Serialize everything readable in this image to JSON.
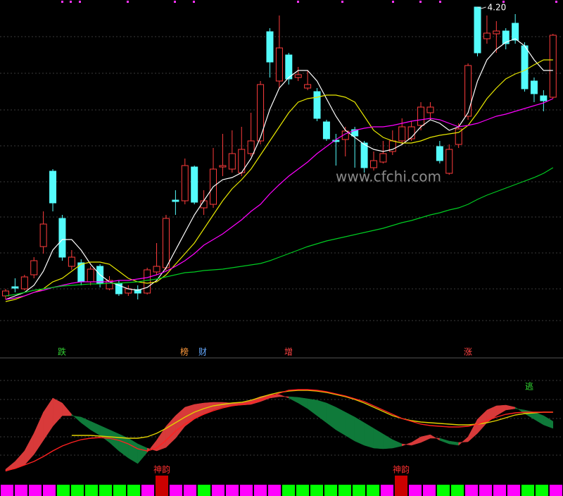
{
  "chart_data": [
    {
      "type": "candlestick",
      "open": [
        2.15,
        2.215,
        2.2,
        2.3,
        2.5,
        3.035,
        2.7,
        2.36,
        2.385,
        2.25,
        2.36,
        2.2,
        2.24,
        2.17,
        2.195,
        2.17,
        2.32,
        2.35,
        2.83,
        2.825,
        3.065,
        2.775,
        2.8,
        3.065,
        3.05,
        3.025,
        3.16,
        3.25,
        4.025,
        3.675,
        3.86,
        3.7,
        3.625,
        3.6,
        3.385,
        3.255,
        3.26,
        3.33,
        3.235,
        3.06,
        3.1,
        3.175,
        3.25,
        3.265,
        3.36,
        3.45,
        3.21,
        3.02,
        3.225,
        3.425,
        4.2,
        3.975,
        4.01,
        4.03,
        4.085,
        3.925,
        3.675,
        3.57,
        3.56
      ],
      "high": [
        2.2,
        2.275,
        2.3,
        2.425,
        2.75,
        3.05,
        2.725,
        2.475,
        2.41,
        2.36,
        2.375,
        2.29,
        2.26,
        2.225,
        2.225,
        2.35,
        2.525,
        2.725,
        2.9,
        3.125,
        3.075,
        2.9,
        3.2,
        3.3,
        3.325,
        3.35,
        3.45,
        3.675,
        4.05,
        4.14,
        3.875,
        3.775,
        3.75,
        3.625,
        3.4,
        3.3,
        3.35,
        3.35,
        3.25,
        3.175,
        3.25,
        3.325,
        3.41,
        3.39,
        3.525,
        3.525,
        3.25,
        3.225,
        3.375,
        3.8,
        4.2,
        4.14,
        4.1,
        4.05,
        4.15,
        3.95,
        3.7,
        3.61,
        4.01
      ],
      "low": [
        2.125,
        2.175,
        2.19,
        2.275,
        2.45,
        2.75,
        2.4,
        2.335,
        2.225,
        2.225,
        2.21,
        2.19,
        2.15,
        2.15,
        2.125,
        2.16,
        2.3,
        2.325,
        2.725,
        2.8,
        2.8,
        2.725,
        2.775,
        3.0,
        3.025,
        3.0,
        3.14,
        3.225,
        3.7,
        3.625,
        3.65,
        3.675,
        3.61,
        3.39,
        3.25,
        3.075,
        3.14,
        3.06,
        3.025,
        3.04,
        3.09,
        3.15,
        3.225,
        3.25,
        3.325,
        3.4,
        3.09,
        3.01,
        3.2,
        3.4,
        3.85,
        3.94,
        3.875,
        3.9,
        3.94,
        3.6,
        3.525,
        3.46,
        3.55
      ],
      "close": [
        2.185,
        2.205,
        2.285,
        2.4,
        2.66,
        2.81,
        2.425,
        2.425,
        2.25,
        2.34,
        2.24,
        2.26,
        2.165,
        2.2,
        2.17,
        2.335,
        2.36,
        2.7,
        2.82,
        3.075,
        2.815,
        2.825,
        3.05,
        3.075,
        3.16,
        3.19,
        3.25,
        3.65,
        3.81,
        3.91,
        3.69,
        3.72,
        3.65,
        3.41,
        3.265,
        3.245,
        3.32,
        3.285,
        3.06,
        3.11,
        3.16,
        3.25,
        3.35,
        3.35,
        3.49,
        3.49,
        3.11,
        3.19,
        3.335,
        3.785,
        3.875,
        4.015,
        4.03,
        3.94,
        3.965,
        3.62,
        3.585,
        3.535,
        4.0
      ],
      "up_color": "#ff3c3c",
      "down_color": "#54fcfc",
      "series": [
        {
          "color": "#ffffff",
          "values": [
            2.125,
            2.15,
            2.175,
            2.225,
            2.325,
            2.475,
            2.55,
            2.55,
            2.475,
            2.375,
            2.3,
            2.25,
            2.225,
            2.2,
            2.19,
            2.21,
            2.26,
            2.35,
            2.475,
            2.6,
            2.725,
            2.825,
            2.925,
            2.975,
            2.99,
            3.025,
            3.125,
            3.275,
            3.475,
            3.625,
            3.7,
            3.75,
            3.75,
            3.675,
            3.55,
            3.425,
            3.325,
            3.275,
            3.225,
            3.19,
            3.175,
            3.19,
            3.225,
            3.275,
            3.35,
            3.4,
            3.375,
            3.325,
            3.35,
            3.45,
            3.675,
            3.825,
            3.9,
            3.95,
            3.975,
            3.925,
            3.825,
            3.75,
            3.75
          ]
        },
        {
          "color": "#e8e800",
          "values": [
            2.11,
            2.125,
            2.15,
            2.175,
            2.2,
            2.25,
            2.275,
            2.325,
            2.375,
            2.39,
            2.39,
            2.375,
            2.325,
            2.275,
            2.25,
            2.24,
            2.25,
            2.3,
            2.375,
            2.45,
            2.525,
            2.625,
            2.725,
            2.825,
            2.91,
            2.975,
            3.05,
            3.15,
            3.25,
            3.35,
            3.45,
            3.525,
            3.55,
            3.56,
            3.575,
            3.575,
            3.56,
            3.525,
            3.425,
            3.325,
            3.275,
            3.25,
            3.235,
            3.235,
            3.25,
            3.275,
            3.29,
            3.3,
            3.31,
            3.36,
            3.45,
            3.55,
            3.625,
            3.69,
            3.725,
            3.75,
            3.79,
            3.825,
            3.825
          ]
        },
        {
          "color": "#ff00ff",
          "values": [
            2.125,
            2.135,
            2.15,
            2.175,
            2.19,
            2.21,
            2.225,
            2.24,
            2.25,
            2.25,
            2.25,
            2.25,
            2.26,
            2.26,
            2.27,
            2.28,
            2.3,
            2.325,
            2.36,
            2.4,
            2.45,
            2.51,
            2.55,
            2.59,
            2.64,
            2.69,
            2.75,
            2.8,
            2.875,
            2.94,
            3.0,
            3.05,
            3.1,
            3.16,
            3.21,
            3.26,
            3.3,
            3.325,
            3.34,
            3.35,
            3.35,
            3.36,
            3.375,
            3.39,
            3.4,
            3.41,
            3.4,
            3.375,
            3.35,
            3.36,
            3.375,
            3.4,
            3.425,
            3.44,
            3.46,
            3.48,
            3.5,
            3.52,
            3.55
          ]
        },
        {
          "color": "#00cc22",
          "values": [
            2.15,
            2.16,
            2.175,
            2.19,
            2.2,
            2.21,
            2.22,
            2.225,
            2.23,
            2.235,
            2.235,
            2.24,
            2.24,
            2.245,
            2.25,
            2.26,
            2.27,
            2.285,
            2.3,
            2.315,
            2.32,
            2.33,
            2.335,
            2.34,
            2.35,
            2.36,
            2.37,
            2.38,
            2.4,
            2.425,
            2.45,
            2.475,
            2.5,
            2.52,
            2.54,
            2.555,
            2.57,
            2.585,
            2.6,
            2.615,
            2.63,
            2.65,
            2.67,
            2.685,
            2.705,
            2.725,
            2.74,
            2.76,
            2.775,
            2.8,
            2.835,
            2.865,
            2.89,
            2.915,
            2.94,
            2.965,
            2.99,
            3.02,
            3.06
          ]
        }
      ],
      "max_label": {
        "value": 4.2,
        "label": "4.20"
      },
      "ylim": [
        1.95,
        4.25
      ]
    },
    {
      "type": "ribbon",
      "fast": [
        14,
        25,
        40,
        65,
        95,
        115,
        108,
        92,
        80,
        70,
        62,
        52,
        40,
        30,
        22,
        38,
        55,
        75,
        90,
        102,
        106,
        108,
        109,
        109,
        108,
        108,
        112,
        117,
        120,
        120,
        115,
        108,
        100,
        90,
        80,
        70,
        62,
        54,
        48,
        44,
        43,
        44,
        47,
        52,
        60,
        63,
        55,
        50,
        48,
        60,
        85,
        98,
        104,
        105,
        102,
        93,
        85,
        77,
        72
      ],
      "slow": [
        11,
        15,
        20,
        35,
        55,
        75,
        90,
        90,
        88,
        82,
        76,
        70,
        64,
        58,
        50,
        44,
        40,
        45,
        58,
        75,
        85,
        92,
        98,
        102,
        104,
        105,
        106,
        110,
        115,
        117,
        117,
        116,
        114,
        112,
        108,
        102,
        95,
        88,
        80,
        72,
        64,
        56,
        50,
        48,
        52,
        58,
        58,
        54,
        52,
        53,
        65,
        80,
        90,
        98,
        100,
        98,
        95,
        90,
        82
      ],
      "rise_color": "#d83a3a",
      "fall_color": "#0f7a3a",
      "series": [
        {
          "color": "#e0d000",
          "values": [
            null,
            null,
            null,
            null,
            null,
            null,
            null,
            62,
            62,
            62,
            61,
            60,
            59,
            58,
            58,
            60,
            65,
            72,
            80,
            88,
            95,
            100,
            104,
            106,
            108,
            109,
            112,
            116,
            120,
            123,
            125,
            126,
            126,
            125,
            123,
            120,
            117,
            113,
            108,
            102,
            96,
            90,
            86,
            83,
            81,
            80,
            79,
            78,
            77,
            77,
            78,
            80,
            83,
            87,
            91,
            93,
            94,
            95,
            95
          ]
        },
        {
          "color": "#ff2020",
          "values": [
            12,
            15,
            20,
            25,
            32,
            40,
            47,
            52,
            56,
            58,
            59,
            58,
            55,
            50,
            43,
            40,
            44,
            55,
            68,
            78,
            86,
            92,
            97,
            101,
            104,
            106,
            108,
            112,
            117,
            122,
            126,
            127,
            127,
            126,
            124,
            121,
            118,
            114,
            110,
            104,
            98,
            92,
            86,
            82,
            78,
            76,
            75,
            74,
            74,
            75,
            78,
            83,
            88,
            92,
            94,
            95,
            95,
            95,
            95
          ]
        }
      ],
      "ylim": [
        0,
        160
      ]
    }
  ],
  "watermark": "www.cfchi.com",
  "markers": [
    {
      "text": "跌",
      "color": "#33cc33"
    },
    {
      "text": "榜",
      "color": "#ff9a3c"
    },
    {
      "text": "财",
      "color": "#66aaff"
    },
    {
      "text": "增",
      "color": "#ff4444"
    },
    {
      "text": "涨",
      "color": "#ff4444"
    },
    {
      "text": "逃",
      "color": "#33dd33"
    }
  ],
  "strip": {
    "colors": [
      "#ff00ff",
      "#ff00ff",
      "#ff00ff",
      "#ff00ff",
      "#00ff00",
      "#00ff00",
      "#00ff00",
      "#00ff00",
      "#00ff00",
      "#00ff00",
      "#ff00ff",
      "#cc0000",
      "#ff00ff",
      "#ff00ff",
      "#00ff00",
      "#ff00ff",
      "#ff00ff",
      "#ff00ff",
      "#ff00ff",
      "#ff00ff",
      "#00ff00",
      "#00ff00",
      "#00ff00",
      "#00ff00",
      "#00ff00",
      "#00ff00",
      "#00ff00",
      "#ff00ff",
      "#cc0000",
      "#ff00ff",
      "#ff00ff",
      "#00ff00",
      "#00ff00",
      "#ff00ff",
      "#ff00ff",
      "#ff00ff",
      "#ff00ff",
      "#00ff00",
      "#00ff00",
      "#ff00ff"
    ],
    "signal_color": "#cc0000",
    "signal_labels": [
      "神韵",
      "神韵"
    ]
  }
}
